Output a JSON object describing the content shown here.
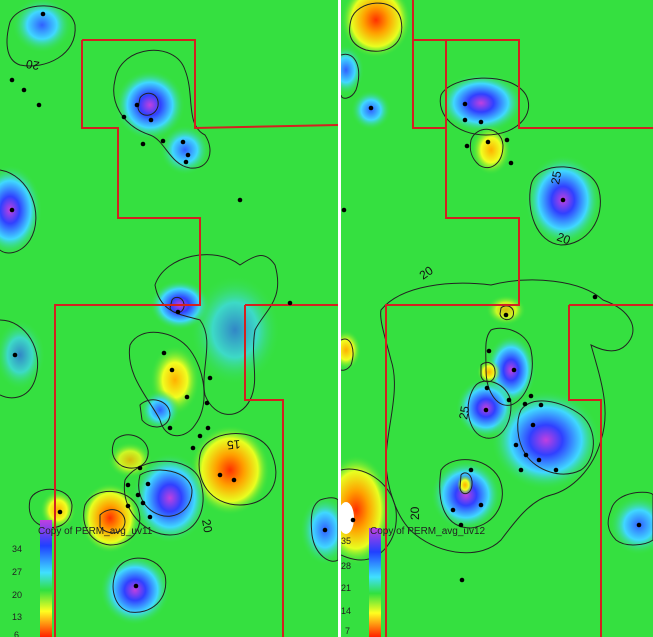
{
  "maps": [
    {
      "id": "left",
      "legend": {
        "title": "Copy of PERM_avg_uv11",
        "ticks": [
          "34",
          "27",
          "20",
          "13",
          "6"
        ]
      },
      "contour_labels": [
        "20",
        "15",
        "20"
      ]
    },
    {
      "id": "right",
      "legend": {
        "title": "Copy of PERM_avg_uv12",
        "ticks": [
          "35",
          "28",
          "21",
          "14",
          "7"
        ]
      },
      "contour_labels": [
        "25",
        "20",
        "20",
        "25",
        "20"
      ]
    }
  ],
  "colors": {
    "background": "#35e040",
    "boundary": "#d42020",
    "contour": "#222222",
    "well": "#000000",
    "high": "#c040e0",
    "mid_high": "#2040ff",
    "mid": "#40e0ff",
    "low_mid": "#ffff20",
    "low": "#ff4000"
  }
}
